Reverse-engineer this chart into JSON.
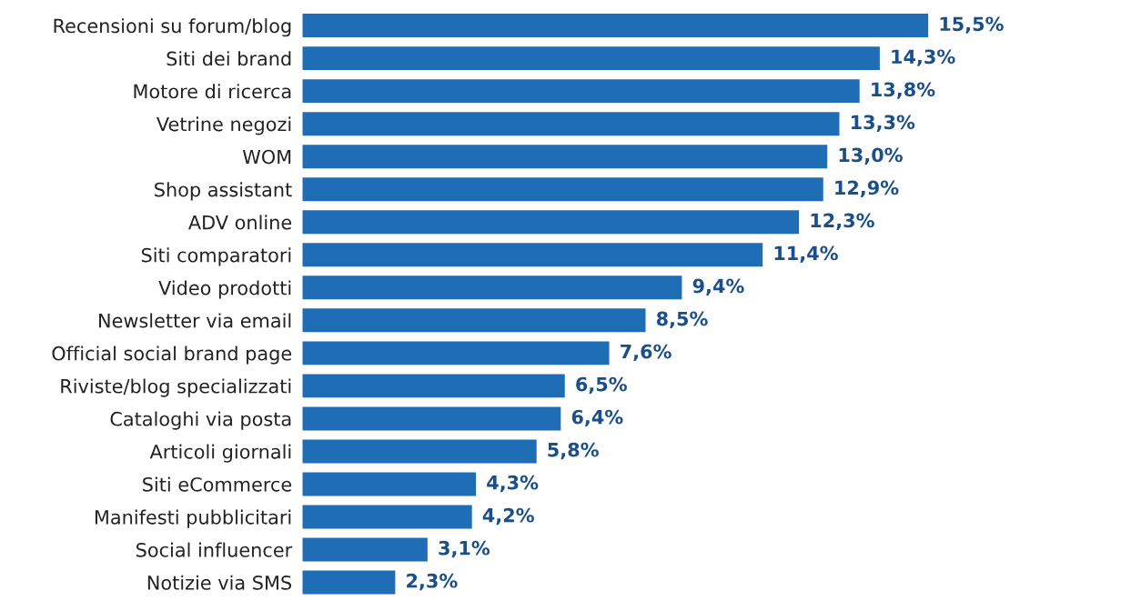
{
  "chart_data": {
    "type": "bar",
    "orientation": "horizontal",
    "categories": [
      "Recensioni su forum/blog",
      "Siti dei brand",
      "Motore di ricerca",
      "Vetrine negozi",
      "WOM",
      "Shop assistant",
      "ADV online",
      "Siti comparatori",
      "Video prodotti",
      "Newsletter via email",
      "Official social brand page",
      "Riviste/blog specializzati",
      "Cataloghi via posta",
      "Articoli giornali",
      "Siti eCommerce",
      "Manifesti pubblicitari",
      "Social influencer",
      "Notizie via SMS"
    ],
    "values": [
      15.5,
      14.3,
      13.8,
      13.3,
      13.0,
      12.9,
      12.3,
      11.4,
      9.4,
      8.5,
      7.6,
      6.5,
      6.4,
      5.8,
      4.3,
      4.2,
      3.1,
      2.3
    ],
    "value_labels": [
      "15,5%",
      "14,3%",
      "13,8%",
      "13,3%",
      "13,0%",
      "12,9%",
      "12,3%",
      "11,4%",
      "9,4%",
      "8,5%",
      "7,6%",
      "6,5%",
      "6,4%",
      "5,8%",
      "4,3%",
      "4,2%",
      "3,1%",
      "2,3%"
    ],
    "color": "#1f6db5"
  }
}
